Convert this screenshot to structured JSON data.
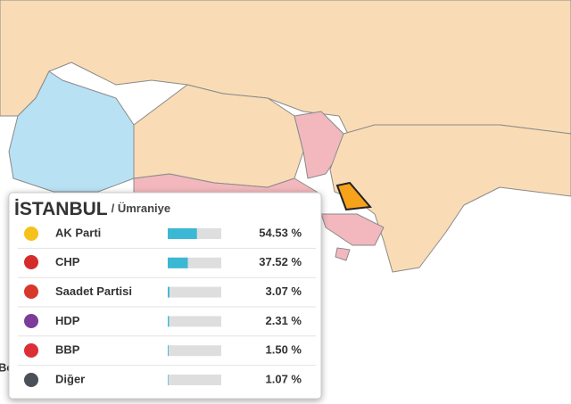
{
  "map_label": "Be",
  "popup": {
    "title": "İSTANBUL",
    "subtitle": "/ Ümraniye",
    "bar_scale": [
      0,
      100
    ],
    "bar_color": "#3bb8d3",
    "rows": [
      {
        "name": "AK Parti",
        "value": 54.53,
        "value_label": "54.53 %"
      },
      {
        "name": "CHP",
        "value": 37.52,
        "value_label": "37.52 %"
      },
      {
        "name": "Saadet Partisi",
        "value": 3.07,
        "value_label": "3.07 %"
      },
      {
        "name": "HDP",
        "value": 2.31,
        "value_label": "2.31 %"
      },
      {
        "name": "BBP",
        "value": 1.5,
        "value_label": "1.50 %"
      },
      {
        "name": "Diğer",
        "value": 1.07,
        "value_label": "1.07 %"
      }
    ]
  }
}
